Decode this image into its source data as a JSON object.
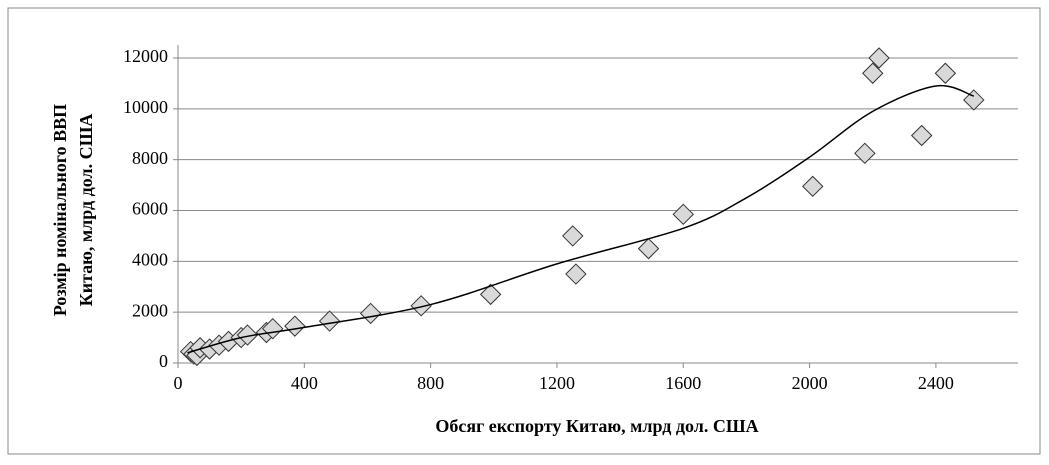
{
  "chart_data": {
    "type": "scatter",
    "xlabel": "Обсяг експорту Китаю, млрд  дол. США",
    "ylabel": [
      "Розмір номінального ВВП",
      "Китаю, млрд  дол. США"
    ],
    "series": [
      {
        "color": "#d9d9d9",
        "x": [
          40,
          50,
          60,
          70,
          100,
          130,
          160,
          200,
          220,
          280,
          300,
          370,
          480,
          610,
          770,
          990,
          1250,
          1260,
          1490,
          1600,
          2010,
          2175,
          2200,
          2220,
          2355,
          2430,
          2520
        ],
        "values": [
          450,
          350,
          300,
          600,
          550,
          700,
          850,
          1000,
          1100,
          1200,
          1350,
          1450,
          1650,
          1950,
          2250,
          2700,
          5000,
          3500,
          4500,
          5850,
          6950,
          8250,
          11400,
          12000,
          8950,
          11400,
          10350
        ]
      }
    ],
    "trendline": {
      "color": "#000000",
      "x": [
        30,
        200,
        400,
        800,
        1200,
        1600,
        1800,
        2000,
        2200,
        2400,
        2520
      ],
      "values": [
        400,
        1000,
        1400,
        2300,
        3900,
        5300,
        6500,
        8100,
        9900,
        10900,
        10500
      ]
    },
    "xlim": [
      0,
      2660
    ],
    "xticks": [
      0,
      400,
      800,
      1200,
      1600,
      2000,
      2400
    ],
    "ylim": [
      0,
      12000
    ],
    "yticks": [
      0,
      2000,
      4000,
      6000,
      8000,
      10000,
      12000
    ],
    "grid": true
  }
}
